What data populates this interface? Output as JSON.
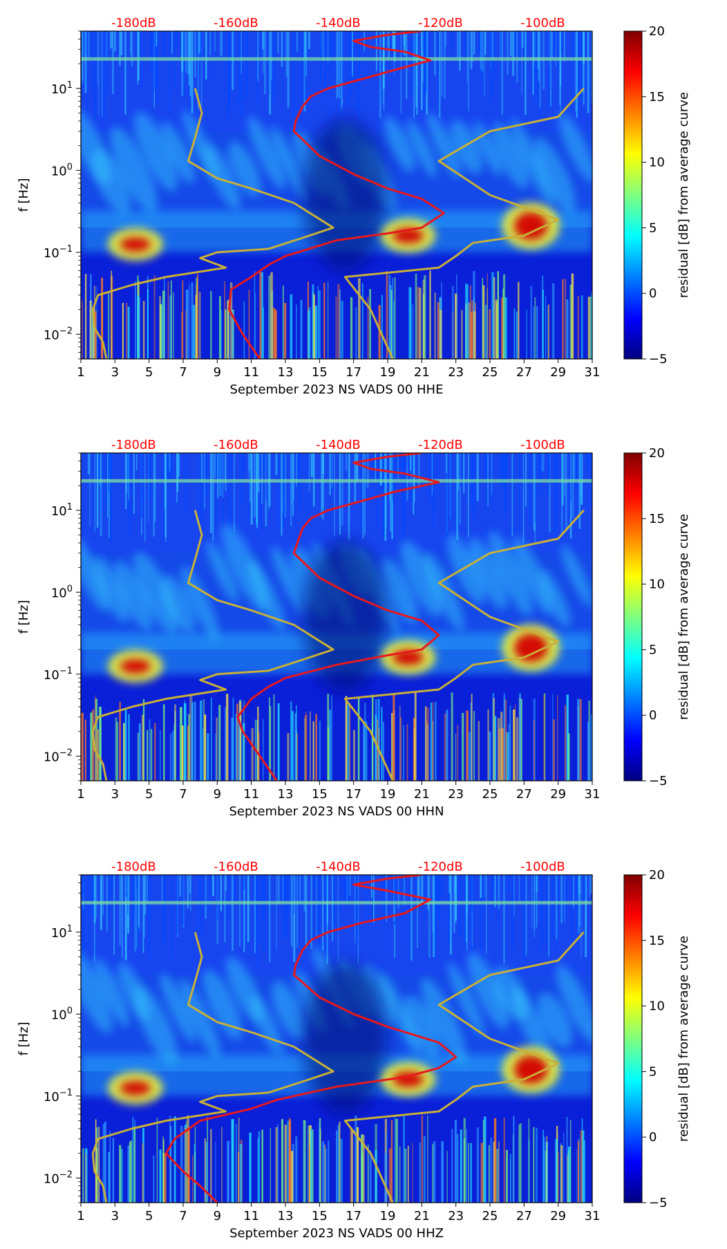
{
  "chart_data": [
    {
      "type": "heatmap",
      "xlabel": "September 2023 NS VADS 00 HHE",
      "ylabel": "f [Hz]",
      "colorbar_label": "residual [dB] from average curve",
      "x_ticks": [
        "1",
        "3",
        "5",
        "7",
        "9",
        "11",
        "13",
        "15",
        "17",
        "19",
        "21",
        "23",
        "25",
        "27",
        "29",
        "31"
      ],
      "xlim": [
        1,
        31
      ],
      "y_ticks": [
        "10^1",
        "10^0",
        "10^-1",
        "10^-2"
      ],
      "ylim_hz": [
        0.005,
        50
      ],
      "y_scale": "log",
      "colorbar_ticks": [
        "20",
        "15",
        "10",
        "5",
        "0",
        "−5"
      ],
      "clim": [
        -5,
        20
      ],
      "colormap": "jet",
      "db_ticks": [
        "-180dB",
        "-160dB",
        "-140dB",
        "-120dB",
        "-100dB"
      ],
      "series": [
        {
          "color": "#e8181c",
          "points": [
            [
              11.5,
              0.005
            ],
            [
              10.5,
              0.01
            ],
            [
              9.7,
              0.02
            ],
            [
              9.8,
              0.035
            ],
            [
              11,
              0.05
            ],
            [
              12,
              0.07
            ],
            [
              13,
              0.09
            ],
            [
              16,
              0.14
            ],
            [
              19,
              0.17
            ],
            [
              21,
              0.2
            ],
            [
              22.3,
              0.3
            ],
            [
              21,
              0.45
            ],
            [
              19,
              0.6
            ],
            [
              17,
              0.9
            ],
            [
              15,
              1.5
            ],
            [
              13.5,
              3
            ],
            [
              13.6,
              4
            ],
            [
              14,
              6
            ],
            [
              14.5,
              8
            ],
            [
              15.5,
              10
            ],
            [
              17.5,
              13
            ],
            [
              19.5,
              17
            ],
            [
              21.5,
              22
            ],
            [
              20,
              28
            ],
            [
              18,
              32
            ],
            [
              17,
              38
            ],
            [
              19,
              45
            ],
            [
              21,
              50
            ]
          ]
        },
        {
          "color": "#c9b037",
          "points": [
            [
              2.5,
              0.005
            ],
            [
              2.3,
              0.008
            ],
            [
              1.8,
              0.012
            ],
            [
              1.7,
              0.02
            ],
            [
              2,
              0.03
            ],
            [
              4,
              0.04
            ],
            [
              6,
              0.05
            ],
            [
              9.5,
              0.065
            ],
            [
              8,
              0.085
            ],
            [
              9,
              0.1
            ],
            [
              12,
              0.11
            ],
            [
              14,
              0.15
            ],
            [
              15.8,
              0.2
            ],
            [
              13.5,
              0.4
            ],
            [
              11,
              0.6
            ],
            [
              9,
              0.8
            ],
            [
              7.3,
              1.3
            ],
            [
              7.7,
              2.5
            ],
            [
              8.1,
              5
            ],
            [
              7.7,
              10
            ]
          ]
        },
        {
          "color": "#c9b037",
          "points": [
            [
              19.3,
              0.005
            ],
            [
              18,
              0.02
            ],
            [
              16.5,
              0.05
            ],
            [
              22,
              0.065
            ],
            [
              23,
              0.09
            ],
            [
              24,
              0.13
            ],
            [
              27,
              0.16
            ],
            [
              29,
              0.25
            ],
            [
              25,
              0.5
            ],
            [
              22,
              1.3
            ],
            [
              25,
              3
            ],
            [
              29,
              4.5
            ],
            [
              30.5,
              10
            ]
          ]
        }
      ]
    },
    {
      "type": "heatmap",
      "xlabel": "September 2023 NS VADS 00 HHN",
      "ylabel": "f [Hz]",
      "colorbar_label": "residual [dB] from average curve",
      "x_ticks": [
        "1",
        "3",
        "5",
        "7",
        "9",
        "11",
        "13",
        "15",
        "17",
        "19",
        "21",
        "23",
        "25",
        "27",
        "29",
        "31"
      ],
      "xlim": [
        1,
        31
      ],
      "y_ticks": [
        "10^1",
        "10^0",
        "10^-1",
        "10^-2"
      ],
      "ylim_hz": [
        0.005,
        50
      ],
      "y_scale": "log",
      "colorbar_ticks": [
        "20",
        "15",
        "10",
        "5",
        "0",
        "−5"
      ],
      "clim": [
        -5,
        20
      ],
      "colormap": "jet",
      "db_ticks": [
        "-180dB",
        "-160dB",
        "-140dB",
        "-120dB",
        "-100dB"
      ],
      "series": [
        {
          "color": "#e8181c",
          "points": [
            [
              12.5,
              0.005
            ],
            [
              11.5,
              0.01
            ],
            [
              10.5,
              0.02
            ],
            [
              10.2,
              0.03
            ],
            [
              11,
              0.05
            ],
            [
              12,
              0.07
            ],
            [
              13,
              0.09
            ],
            [
              16,
              0.13
            ],
            [
              19,
              0.17
            ],
            [
              21,
              0.2
            ],
            [
              22,
              0.3
            ],
            [
              21,
              0.45
            ],
            [
              19,
              0.6
            ],
            [
              17,
              0.9
            ],
            [
              15,
              1.5
            ],
            [
              13.5,
              3
            ],
            [
              13.7,
              4
            ],
            [
              14,
              6
            ],
            [
              14.5,
              8
            ],
            [
              15.5,
              10
            ],
            [
              17.5,
              13
            ],
            [
              19.5,
              17
            ],
            [
              22,
              22
            ],
            [
              20,
              28
            ],
            [
              18,
              32
            ],
            [
              17,
              38
            ],
            [
              19,
              45
            ],
            [
              21,
              50
            ]
          ]
        },
        {
          "color": "#c9b037",
          "points": [
            [
              2.5,
              0.005
            ],
            [
              2.3,
              0.008
            ],
            [
              1.8,
              0.012
            ],
            [
              1.7,
              0.02
            ],
            [
              2,
              0.03
            ],
            [
              4,
              0.04
            ],
            [
              6,
              0.05
            ],
            [
              9.5,
              0.065
            ],
            [
              8,
              0.085
            ],
            [
              9,
              0.1
            ],
            [
              12,
              0.11
            ],
            [
              14,
              0.15
            ],
            [
              15.8,
              0.2
            ],
            [
              13.5,
              0.4
            ],
            [
              11,
              0.6
            ],
            [
              9,
              0.8
            ],
            [
              7.3,
              1.3
            ],
            [
              7.7,
              2.5
            ],
            [
              8.1,
              5
            ],
            [
              7.7,
              10
            ]
          ]
        },
        {
          "color": "#c9b037",
          "points": [
            [
              19.3,
              0.005
            ],
            [
              18,
              0.02
            ],
            [
              16.5,
              0.05
            ],
            [
              22,
              0.065
            ],
            [
              23,
              0.09
            ],
            [
              24,
              0.13
            ],
            [
              27,
              0.16
            ],
            [
              29,
              0.25
            ],
            [
              25,
              0.5
            ],
            [
              22,
              1.3
            ],
            [
              25,
              3
            ],
            [
              29,
              4.5
            ],
            [
              30.5,
              10
            ]
          ]
        }
      ]
    },
    {
      "type": "heatmap",
      "xlabel": "September 2023 NS VADS 00 HHZ",
      "ylabel": "f [Hz]",
      "colorbar_label": "residual [dB] from average curve",
      "x_ticks": [
        "1",
        "3",
        "5",
        "7",
        "9",
        "11",
        "13",
        "15",
        "17",
        "19",
        "21",
        "23",
        "25",
        "27",
        "29",
        "31"
      ],
      "xlim": [
        1,
        31
      ],
      "y_ticks": [
        "10^1",
        "10^0",
        "10^-1",
        "10^-2"
      ],
      "ylim_hz": [
        0.005,
        50
      ],
      "y_scale": "log",
      "colorbar_ticks": [
        "20",
        "15",
        "10",
        "5",
        "0",
        "−5"
      ],
      "clim": [
        -5,
        20
      ],
      "colormap": "jet",
      "db_ticks": [
        "-180dB",
        "-160dB",
        "-140dB",
        "-120dB",
        "-100dB"
      ],
      "series": [
        {
          "color": "#e8181c",
          "points": [
            [
              9,
              0.005
            ],
            [
              8,
              0.008
            ],
            [
              7,
              0.012
            ],
            [
              6,
              0.02
            ],
            [
              6.5,
              0.03
            ],
            [
              8,
              0.05
            ],
            [
              11,
              0.07
            ],
            [
              12.5,
              0.09
            ],
            [
              16,
              0.13
            ],
            [
              20,
              0.17
            ],
            [
              22,
              0.22
            ],
            [
              23,
              0.3
            ],
            [
              22,
              0.45
            ],
            [
              19,
              0.7
            ],
            [
              17,
              1
            ],
            [
              15,
              1.6
            ],
            [
              13.5,
              3
            ],
            [
              13.6,
              4
            ],
            [
              14,
              6
            ],
            [
              14.5,
              8
            ],
            [
              15.5,
              10
            ],
            [
              17.5,
              13
            ],
            [
              20,
              17
            ],
            [
              21.5,
              25
            ],
            [
              19,
              32
            ],
            [
              17,
              38
            ],
            [
              19,
              45
            ],
            [
              21,
              50
            ]
          ]
        },
        {
          "color": "#c9b037",
          "points": [
            [
              2.5,
              0.005
            ],
            [
              2.3,
              0.008
            ],
            [
              1.8,
              0.012
            ],
            [
              1.7,
              0.02
            ],
            [
              2,
              0.03
            ],
            [
              4,
              0.04
            ],
            [
              6,
              0.05
            ],
            [
              9.5,
              0.065
            ],
            [
              8,
              0.085
            ],
            [
              9,
              0.1
            ],
            [
              12,
              0.11
            ],
            [
              14,
              0.15
            ],
            [
              15.8,
              0.2
            ],
            [
              13.5,
              0.4
            ],
            [
              11,
              0.6
            ],
            [
              9,
              0.8
            ],
            [
              7.3,
              1.3
            ],
            [
              7.7,
              2.5
            ],
            [
              8.1,
              5
            ],
            [
              7.7,
              10
            ]
          ]
        },
        {
          "color": "#c9b037",
          "points": [
            [
              19.3,
              0.005
            ],
            [
              18,
              0.02
            ],
            [
              16.5,
              0.05
            ],
            [
              22,
              0.065
            ],
            [
              23,
              0.09
            ],
            [
              24,
              0.13
            ],
            [
              27,
              0.16
            ],
            [
              29,
              0.25
            ],
            [
              25,
              0.5
            ],
            [
              22,
              1.3
            ],
            [
              25,
              3
            ],
            [
              29,
              4.5
            ],
            [
              30.5,
              10
            ]
          ]
        }
      ]
    }
  ]
}
